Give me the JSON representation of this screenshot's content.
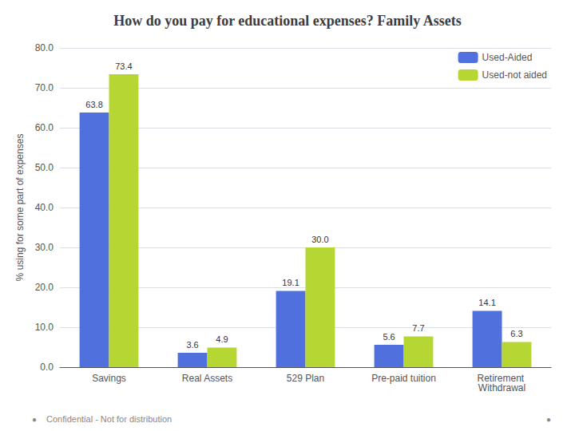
{
  "chart_data": {
    "type": "bar",
    "title": "How do you pay for educational expenses? Family Assets",
    "categories": [
      "Savings",
      "Real Assets",
      "529 Plan",
      "Pre-paid tuition",
      "Retirement Withdrawal"
    ],
    "series": [
      {
        "name": "Used-Aided",
        "values": [
          63.8,
          3.6,
          19.1,
          5.6,
          14.1
        ],
        "value_labels": [
          "63.8",
          "3.6",
          "19.1",
          "5.6",
          "14.1"
        ]
      },
      {
        "name": "Used-not aided",
        "values": [
          73.4,
          4.9,
          30.0,
          7.7,
          6.3
        ],
        "value_labels": [
          "73.4",
          "4.9",
          "30.0",
          "7.7",
          "6.3"
        ]
      }
    ],
    "ylabel": "% using for some part of expenses",
    "ylim": [
      0,
      80
    ],
    "yticks": [
      {
        "value": 0,
        "label": "0.0"
      },
      {
        "value": 10,
        "label": "10.0"
      },
      {
        "value": 20,
        "label": "20.0"
      },
      {
        "value": 30,
        "label": "30.0"
      },
      {
        "value": 40,
        "label": "40.0"
      },
      {
        "value": 50,
        "label": "50.0"
      },
      {
        "value": 60,
        "label": "60.0"
      },
      {
        "value": 70,
        "label": "70.0"
      },
      {
        "value": 80,
        "label": "80.0"
      }
    ],
    "grid": true,
    "legend": "upper right",
    "data_labels": true,
    "annotations": [
      "●",
      "Confidential - Not for distribution",
      "●"
    ]
  }
}
